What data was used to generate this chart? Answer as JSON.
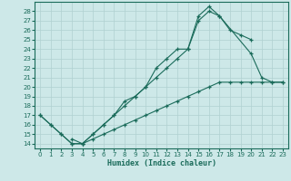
{
  "xlabel": "Humidex (Indice chaleur)",
  "bg_color": "#cde8e8",
  "grid_color": "#b0d0d0",
  "line_color": "#1a6b5a",
  "xlim": [
    -0.5,
    23.5
  ],
  "ylim": [
    13.5,
    29.0
  ],
  "xticks": [
    0,
    1,
    2,
    3,
    4,
    5,
    6,
    7,
    8,
    9,
    10,
    11,
    12,
    13,
    14,
    15,
    16,
    17,
    18,
    19,
    20,
    21,
    22,
    23
  ],
  "yticks": [
    14,
    15,
    16,
    17,
    18,
    19,
    20,
    21,
    22,
    23,
    24,
    25,
    26,
    27,
    28
  ],
  "line1_x": [
    0,
    1,
    2,
    3,
    4,
    5,
    6,
    7,
    8,
    9,
    10,
    11,
    12,
    13,
    14,
    15,
    16,
    17,
    18,
    19,
    20,
    21,
    22,
    23
  ],
  "line1_y": [
    17,
    16,
    15,
    14,
    14,
    14.5,
    15.0,
    15.5,
    16.0,
    16.5,
    17.0,
    17.5,
    18.0,
    18.5,
    19.0,
    19.5,
    20.0,
    20.5,
    20.5,
    20.5,
    20.5,
    20.5,
    20.5,
    20.5
  ],
  "line2_x": [
    0,
    1,
    2,
    3,
    4,
    5,
    6,
    7,
    8,
    9,
    10,
    11,
    12,
    13,
    14,
    15,
    16,
    17,
    20,
    21,
    22,
    23
  ],
  "line2_y": [
    17,
    16,
    15,
    14,
    14,
    15,
    16,
    17,
    18,
    19,
    20,
    21,
    22,
    23,
    24,
    27,
    28,
    27.5,
    23.5,
    21,
    20.5,
    20.5
  ],
  "line3_x": [
    3,
    4,
    5,
    6,
    7,
    8,
    9,
    10,
    11,
    12,
    13,
    14,
    15,
    16,
    17,
    18,
    19,
    20
  ],
  "line3_y": [
    14.5,
    14,
    15,
    16,
    17,
    18.5,
    19,
    20,
    22,
    23,
    24,
    24,
    27.5,
    28.5,
    27.5,
    26,
    25.5,
    25
  ]
}
